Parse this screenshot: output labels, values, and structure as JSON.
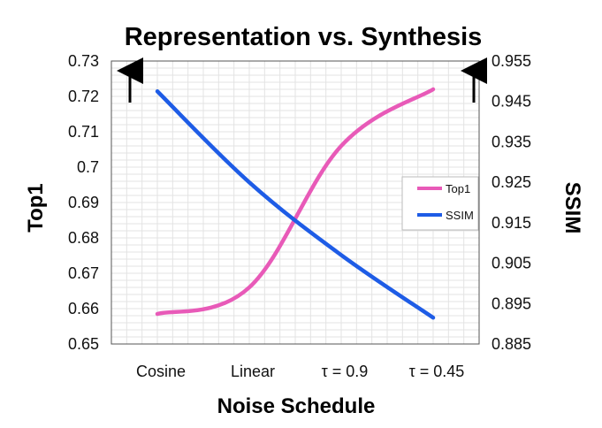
{
  "chart_data": {
    "type": "line",
    "title": "Representation vs. Synthesis",
    "xlabel": "Noise Schedule",
    "categories": [
      "Cosine",
      "Linear",
      "τ = 0.9",
      "τ = 0.45"
    ],
    "y_left": {
      "label": "Top1",
      "ylim": [
        0.65,
        0.73
      ],
      "ticks": [
        "0.65",
        "0.66",
        "0.67",
        "0.68",
        "0.69",
        "0.7",
        "0.71",
        "0.72",
        "0.73"
      ]
    },
    "y_right": {
      "label": "SSIM",
      "ylim": [
        0.885,
        0.955
      ],
      "ticks": [
        "0.885",
        "0.895",
        "0.905",
        "0.915",
        "0.925",
        "0.935",
        "0.945",
        "0.955"
      ]
    },
    "series": [
      {
        "name": "Top1",
        "axis": "left",
        "color": "#e85ab8",
        "values": [
          0.6585,
          0.666,
          0.706,
          0.722
        ]
      },
      {
        "name": "SSIM",
        "axis": "right",
        "color": "#1e5ce6",
        "values": [
          0.9475,
          0.925,
          0.907,
          0.8915
        ]
      }
    ],
    "annotations": [
      "up-arrow-left",
      "up-arrow-right"
    ],
    "grid": true,
    "legend": "right"
  }
}
